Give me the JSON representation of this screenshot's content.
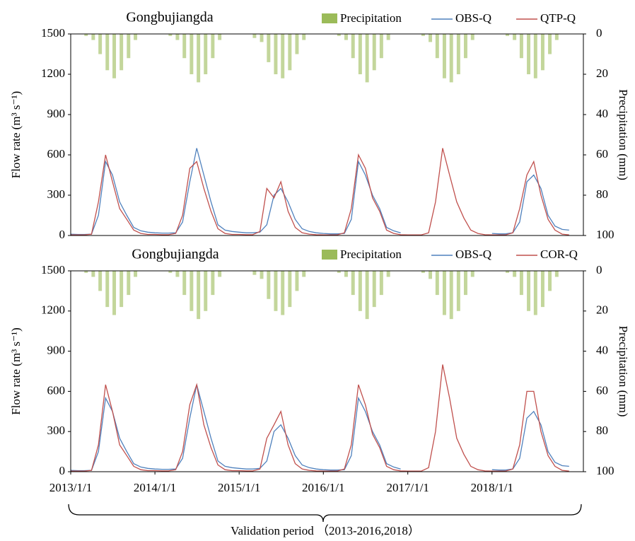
{
  "chart_data": [
    {
      "type": "line",
      "title": "Gongbujiangda",
      "y_label": "Flow rate (m³ s⁻¹)",
      "y2_label": "Precipitation (mm)",
      "x": [
        "2013/1/1",
        "2013/2/1",
        "2013/3/1",
        "2013/4/1",
        "2013/5/1",
        "2013/6/1",
        "2013/7/1",
        "2013/8/1",
        "2013/9/1",
        "2013/10/1",
        "2013/11/1",
        "2013/12/1",
        "2014/1/1",
        "2014/2/1",
        "2014/3/1",
        "2014/4/1",
        "2014/5/1",
        "2014/6/1",
        "2014/7/1",
        "2014/8/1",
        "2014/9/1",
        "2014/10/1",
        "2014/11/1",
        "2014/12/1",
        "2015/1/1",
        "2015/2/1",
        "2015/3/1",
        "2015/4/1",
        "2015/5/1",
        "2015/6/1",
        "2015/7/1",
        "2015/8/1",
        "2015/9/1",
        "2015/10/1",
        "2015/11/1",
        "2015/12/1",
        "2016/1/1",
        "2016/2/1",
        "2016/3/1",
        "2016/4/1",
        "2016/5/1",
        "2016/6/1",
        "2016/7/1",
        "2016/8/1",
        "2016/9/1",
        "2016/10/1",
        "2016/11/1",
        "2016/12/1",
        "2017/1/1",
        "2017/2/1",
        "2017/3/1",
        "2017/4/1",
        "2017/5/1",
        "2017/6/1",
        "2017/7/1",
        "2017/8/1",
        "2017/9/1",
        "2017/10/1",
        "2017/11/1",
        "2017/12/1",
        "2018/1/1",
        "2018/2/1",
        "2018/3/1",
        "2018/4/1",
        "2018/5/1",
        "2018/6/1",
        "2018/7/1",
        "2018/8/1",
        "2018/9/1",
        "2018/10/1",
        "2018/11/1",
        "2018/12/1"
      ],
      "xlim": [
        "2013/1/1",
        "2019/2/1"
      ],
      "ylim": [
        0,
        1500
      ],
      "yticks": [
        0,
        300,
        600,
        900,
        1200,
        1500
      ],
      "y2lim": [
        100,
        0
      ],
      "y2ticks": [
        0,
        20,
        40,
        60,
        80,
        100
      ],
      "series": [
        {
          "name": "Precipitation",
          "type": "bar",
          "axis": "y2",
          "color": "#9bbb59",
          "values": [
            0,
            0,
            1,
            3,
            10,
            18,
            22,
            18,
            12,
            3,
            0,
            0,
            0,
            0,
            1,
            3,
            12,
            20,
            24,
            20,
            12,
            3,
            0,
            0,
            0,
            0,
            2,
            4,
            14,
            20,
            22,
            18,
            10,
            3,
            0,
            0,
            0,
            0,
            1,
            3,
            12,
            20,
            24,
            18,
            12,
            3,
            0,
            0,
            0,
            0,
            1,
            4,
            12,
            22,
            24,
            20,
            12,
            3,
            0,
            0,
            0,
            0,
            1,
            3,
            12,
            20,
            22,
            18,
            10,
            3,
            0,
            0
          ]
        },
        {
          "name": "OBS-Q",
          "type": "line",
          "color": "#4f81bd",
          "values": [
            10,
            8,
            8,
            10,
            150,
            550,
            450,
            250,
            150,
            60,
            35,
            25,
            20,
            18,
            18,
            20,
            100,
            400,
            650,
            450,
            250,
            80,
            40,
            30,
            25,
            20,
            20,
            25,
            80,
            300,
            350,
            250,
            120,
            50,
            30,
            20,
            15,
            12,
            12,
            15,
            120,
            550,
            450,
            300,
            200,
            60,
            35,
            20,
            null,
            null,
            null,
            null,
            null,
            null,
            null,
            null,
            null,
            null,
            null,
            null,
            15,
            12,
            12,
            20,
            100,
            400,
            450,
            350,
            150,
            70,
            45,
            40
          ]
        },
        {
          "name": "QTP-Q",
          "type": "line",
          "color": "#c0504d",
          "values": [
            5,
            5,
            5,
            10,
            250,
            600,
            400,
            200,
            120,
            40,
            15,
            8,
            8,
            6,
            6,
            15,
            150,
            500,
            550,
            350,
            180,
            50,
            15,
            8,
            8,
            6,
            6,
            30,
            350,
            280,
            400,
            180,
            60,
            20,
            10,
            6,
            5,
            5,
            5,
            20,
            200,
            600,
            500,
            280,
            180,
            40,
            15,
            6,
            5,
            5,
            5,
            20,
            250,
            650,
            450,
            250,
            130,
            40,
            15,
            6,
            5,
            5,
            5,
            20,
            200,
            450,
            550,
            300,
            120,
            40,
            10,
            5
          ]
        }
      ]
    },
    {
      "type": "line",
      "title": "Gongbujiangda",
      "y_label": "Flow rate (m³ s⁻¹)",
      "y2_label": "Precipitation (mm)",
      "x_label": "Validation period （2013-2016,2018）",
      "x": [
        "2013/1/1",
        "2013/2/1",
        "2013/3/1",
        "2013/4/1",
        "2013/5/1",
        "2013/6/1",
        "2013/7/1",
        "2013/8/1",
        "2013/9/1",
        "2013/10/1",
        "2013/11/1",
        "2013/12/1",
        "2014/1/1",
        "2014/2/1",
        "2014/3/1",
        "2014/4/1",
        "2014/5/1",
        "2014/6/1",
        "2014/7/1",
        "2014/8/1",
        "2014/9/1",
        "2014/10/1",
        "2014/11/1",
        "2014/12/1",
        "2015/1/1",
        "2015/2/1",
        "2015/3/1",
        "2015/4/1",
        "2015/5/1",
        "2015/6/1",
        "2015/7/1",
        "2015/8/1",
        "2015/9/1",
        "2015/10/1",
        "2015/11/1",
        "2015/12/1",
        "2016/1/1",
        "2016/2/1",
        "2016/3/1",
        "2016/4/1",
        "2016/5/1",
        "2016/6/1",
        "2016/7/1",
        "2016/8/1",
        "2016/9/1",
        "2016/10/1",
        "2016/11/1",
        "2016/12/1",
        "2017/1/1",
        "2017/2/1",
        "2017/3/1",
        "2017/4/1",
        "2017/5/1",
        "2017/6/1",
        "2017/7/1",
        "2017/8/1",
        "2017/9/1",
        "2017/10/1",
        "2017/11/1",
        "2017/12/1",
        "2018/1/1",
        "2018/2/1",
        "2018/3/1",
        "2018/4/1",
        "2018/5/1",
        "2018/6/1",
        "2018/7/1",
        "2018/8/1",
        "2018/9/1",
        "2018/10/1",
        "2018/11/1",
        "2018/12/1"
      ],
      "xlim": [
        "2013/1/1",
        "2019/2/1"
      ],
      "xticks": [
        "2013/1/1",
        "2014/1/1",
        "2015/1/1",
        "2016/1/1",
        "2017/1/1",
        "2018/1/1"
      ],
      "ylim": [
        0,
        1500
      ],
      "yticks": [
        0,
        300,
        600,
        900,
        1200,
        1500
      ],
      "y2lim": [
        100,
        0
      ],
      "y2ticks": [
        0,
        20,
        40,
        60,
        80,
        100
      ],
      "series": [
        {
          "name": "Precipitation",
          "type": "bar",
          "axis": "y2",
          "color": "#9bbb59",
          "values": [
            0,
            0,
            1,
            3,
            10,
            18,
            22,
            18,
            12,
            3,
            0,
            0,
            0,
            0,
            1,
            3,
            12,
            20,
            24,
            20,
            12,
            3,
            0,
            0,
            0,
            0,
            2,
            4,
            14,
            20,
            22,
            18,
            10,
            3,
            0,
            0,
            0,
            0,
            1,
            3,
            12,
            20,
            24,
            18,
            12,
            3,
            0,
            0,
            0,
            0,
            1,
            4,
            12,
            22,
            24,
            20,
            12,
            3,
            0,
            0,
            0,
            0,
            1,
            3,
            12,
            20,
            22,
            18,
            10,
            3,
            0,
            0
          ]
        },
        {
          "name": "OBS-Q",
          "type": "line",
          "color": "#4f81bd",
          "values": [
            10,
            8,
            8,
            10,
            150,
            550,
            450,
            250,
            150,
            60,
            35,
            25,
            20,
            18,
            18,
            20,
            100,
            400,
            650,
            450,
            250,
            80,
            40,
            30,
            25,
            20,
            20,
            25,
            80,
            300,
            350,
            250,
            120,
            50,
            30,
            20,
            15,
            12,
            12,
            15,
            120,
            550,
            450,
            300,
            200,
            60,
            35,
            20,
            null,
            null,
            null,
            null,
            null,
            null,
            null,
            null,
            null,
            null,
            null,
            null,
            15,
            12,
            12,
            20,
            100,
            400,
            450,
            350,
            150,
            70,
            45,
            40
          ]
        },
        {
          "name": "COR-Q",
          "type": "line",
          "color": "#c0504d",
          "values": [
            5,
            5,
            5,
            10,
            200,
            650,
            450,
            200,
            120,
            40,
            15,
            8,
            8,
            6,
            6,
            15,
            150,
            500,
            650,
            350,
            180,
            50,
            15,
            8,
            8,
            6,
            6,
            20,
            250,
            350,
            450,
            200,
            60,
            20,
            10,
            6,
            5,
            5,
            5,
            20,
            200,
            650,
            500,
            280,
            180,
            40,
            15,
            6,
            5,
            5,
            5,
            30,
            300,
            800,
            550,
            250,
            130,
            40,
            15,
            6,
            5,
            5,
            5,
            20,
            200,
            600,
            600,
            300,
            120,
            40,
            10,
            5
          ]
        }
      ]
    }
  ]
}
